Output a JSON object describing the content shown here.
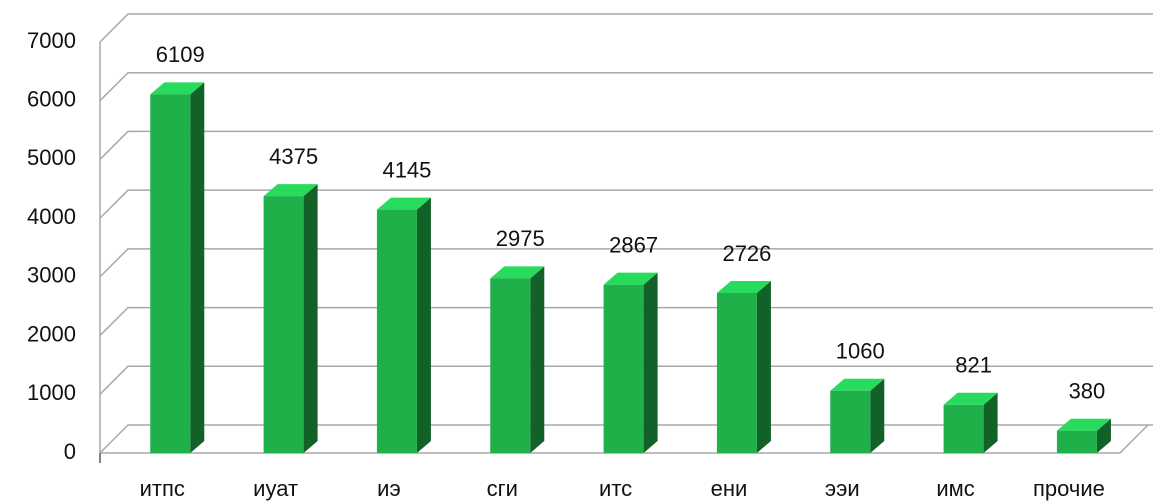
{
  "chart_data": {
    "type": "bar3d",
    "categories": [
      "итпс",
      "иуат",
      "иэ",
      "сги",
      "итс",
      "ени",
      "ээи",
      "имс",
      "прочие"
    ],
    "values": [
      6109,
      4375,
      4145,
      2975,
      2867,
      2726,
      1060,
      821,
      380
    ],
    "color": "#1fb04a",
    "ylim": [
      0,
      7000
    ],
    "yticks": [
      0,
      1000,
      2000,
      3000,
      4000,
      5000,
      6000,
      7000
    ],
    "grid": true
  }
}
